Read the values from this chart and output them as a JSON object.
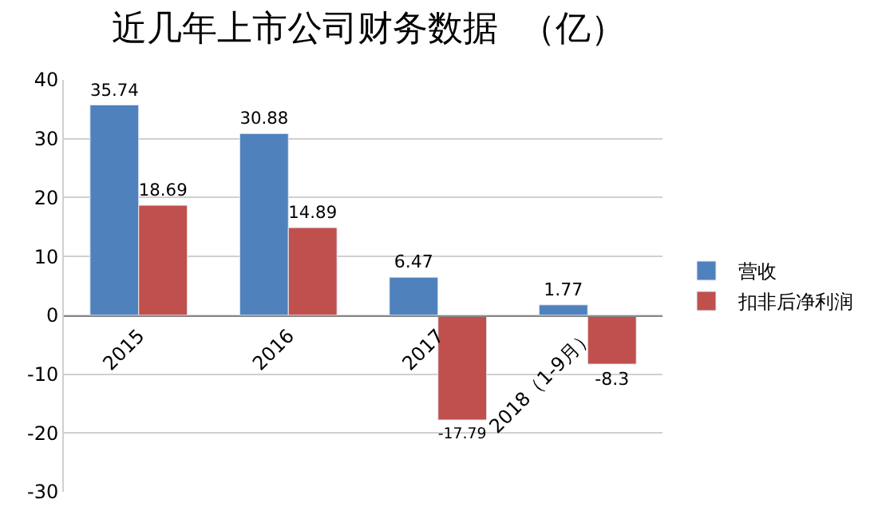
{
  "chart_data": {
    "type": "bar",
    "title": "近几年上市公司财务数据  （亿）",
    "categories": [
      "2015",
      "2016",
      "2017",
      "2018（1-9月）"
    ],
    "series": [
      {
        "name": "营收",
        "color": "#4f81bd",
        "values": [
          35.74,
          30.88,
          6.47,
          1.77
        ]
      },
      {
        "name": "扣非后净利润",
        "color": "#c0504d",
        "values": [
          18.69,
          14.89,
          -17.79,
          -8.3
        ]
      }
    ],
    "ylim": [
      -30,
      40
    ],
    "yticks": [
      -30,
      -20,
      -10,
      0,
      10,
      20,
      30,
      40
    ],
    "grid": "y",
    "legend": "right",
    "data_labels": true
  }
}
